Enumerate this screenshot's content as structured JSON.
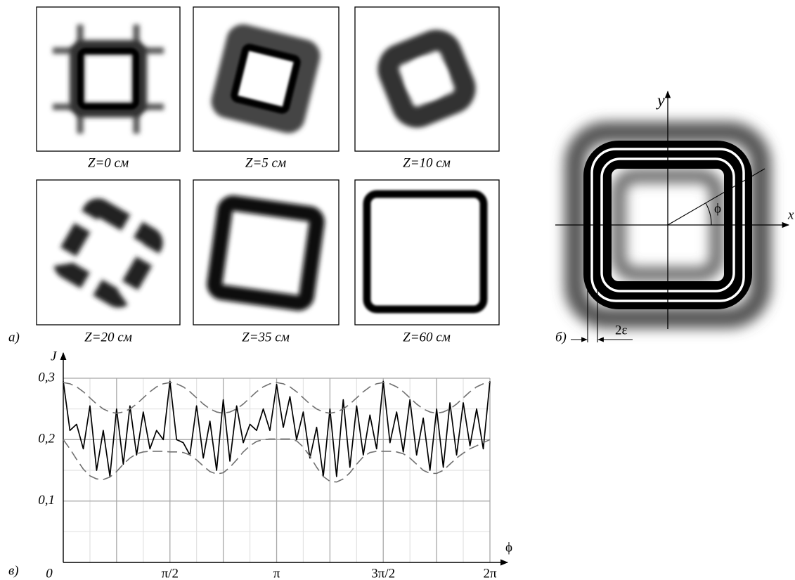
{
  "panel_a": {
    "letter": "а)",
    "captions": [
      "Z=0 см",
      "Z=5 см",
      "Z=10 см",
      "Z=20 см",
      "Z=35 см",
      "Z=60 см"
    ]
  },
  "panel_b": {
    "letter": "б)",
    "x_axis": "x",
    "y_axis": "y",
    "angle": "ϕ",
    "width": "2ε"
  },
  "panel_c": {
    "letter": "в)"
  },
  "chart_data": {
    "type": "line",
    "x_label": "ϕ",
    "y_label": "J",
    "x": [
      0,
      0.098,
      0.196,
      0.295,
      0.393,
      0.491,
      0.589,
      0.687,
      0.785,
      0.884,
      0.982,
      1.08,
      1.178,
      1.276,
      1.374,
      1.473,
      1.571,
      1.669,
      1.767,
      1.865,
      1.963,
      2.062,
      2.16,
      2.258,
      2.356,
      2.454,
      2.553,
      2.651,
      2.749,
      2.847,
      2.945,
      3.043,
      3.142,
      3.24,
      3.338,
      3.436,
      3.534,
      3.632,
      3.731,
      3.829,
      3.927,
      4.025,
      4.123,
      4.221,
      4.32,
      4.418,
      4.516,
      4.614,
      4.712,
      4.811,
      4.909,
      5.007,
      5.105,
      5.203,
      5.301,
      5.4,
      5.498,
      5.596,
      5.694,
      5.792,
      5.89,
      5.989,
      6.087,
      6.185,
      6.283
    ],
    "series": [
      {
        "color": "#000000",
        "line_style": "solid",
        "values": [
          0.295,
          0.215,
          0.225,
          0.185,
          0.255,
          0.15,
          0.215,
          0.14,
          0.25,
          0.16,
          0.255,
          0.175,
          0.245,
          0.185,
          0.215,
          0.2,
          0.295,
          0.2,
          0.195,
          0.175,
          0.255,
          0.17,
          0.23,
          0.15,
          0.265,
          0.165,
          0.255,
          0.195,
          0.225,
          0.215,
          0.25,
          0.215,
          0.29,
          0.22,
          0.27,
          0.2,
          0.245,
          0.17,
          0.22,
          0.14,
          0.25,
          0.14,
          0.265,
          0.155,
          0.255,
          0.175,
          0.24,
          0.185,
          0.295,
          0.195,
          0.245,
          0.18,
          0.265,
          0.175,
          0.235,
          0.15,
          0.25,
          0.155,
          0.26,
          0.175,
          0.26,
          0.19,
          0.25,
          0.185,
          0.295
        ]
      },
      {
        "color": "#707070",
        "line_style": "dashed",
        "values": [
          0.293,
          0.291,
          0.286,
          0.278,
          0.268,
          0.258,
          0.25,
          0.245,
          0.243,
          0.245,
          0.25,
          0.258,
          0.268,
          0.278,
          0.286,
          0.291,
          0.293,
          0.291,
          0.286,
          0.278,
          0.268,
          0.258,
          0.25,
          0.245,
          0.243,
          0.245,
          0.25,
          0.258,
          0.268,
          0.278,
          0.286,
          0.291,
          0.293,
          0.291,
          0.286,
          0.278,
          0.268,
          0.258,
          0.25,
          0.245,
          0.243,
          0.245,
          0.25,
          0.258,
          0.268,
          0.278,
          0.286,
          0.291,
          0.293,
          0.291,
          0.286,
          0.278,
          0.268,
          0.258,
          0.25,
          0.245,
          0.243,
          0.245,
          0.25,
          0.258,
          0.268,
          0.278,
          0.286,
          0.291,
          0.293
        ]
      },
      {
        "color": "#707070",
        "line_style": "dashed",
        "values": [
          0.2,
          0.185,
          0.168,
          0.152,
          0.141,
          0.136,
          0.135,
          0.139,
          0.148,
          0.16,
          0.17,
          0.177,
          0.18,
          0.181,
          0.181,
          0.181,
          0.18,
          0.18,
          0.179,
          0.175,
          0.167,
          0.157,
          0.148,
          0.144,
          0.146,
          0.155,
          0.167,
          0.18,
          0.19,
          0.197,
          0.2,
          0.201,
          0.201,
          0.201,
          0.201,
          0.198,
          0.188,
          0.173,
          0.155,
          0.14,
          0.132,
          0.131,
          0.136,
          0.146,
          0.16,
          0.172,
          0.179,
          0.181,
          0.181,
          0.181,
          0.18,
          0.177,
          0.17,
          0.16,
          0.15,
          0.145,
          0.145,
          0.15,
          0.16,
          0.17,
          0.178,
          0.185,
          0.19,
          0.195,
          0.2
        ]
      }
    ],
    "xlim": [
      0,
      6.283
    ],
    "ylim": [
      0,
      0.3
    ],
    "xticks": [
      0,
      {
        "value": 1.571,
        "label": "π/2"
      },
      {
        "value": 3.142,
        "label": "π"
      },
      {
        "value": 4.712,
        "label": "3π/2"
      },
      {
        "value": 6.283,
        "label": "2π"
      }
    ],
    "yticks": [
      {
        "value": 0.1,
        "label": "0,1"
      },
      {
        "value": 0.2,
        "label": "0,2"
      },
      {
        "value": 0.3,
        "label": "0,3"
      }
    ],
    "x_grid": [
      0.785,
      2.356,
      3.927,
      5.498
    ],
    "x_minor_grid": [
      0.393,
      1.178,
      1.963,
      2.749,
      3.534,
      4.32,
      5.105,
      5.89
    ],
    "y_minor_grid": [
      0.05,
      0.15,
      0.25
    ],
    "grid": true
  }
}
